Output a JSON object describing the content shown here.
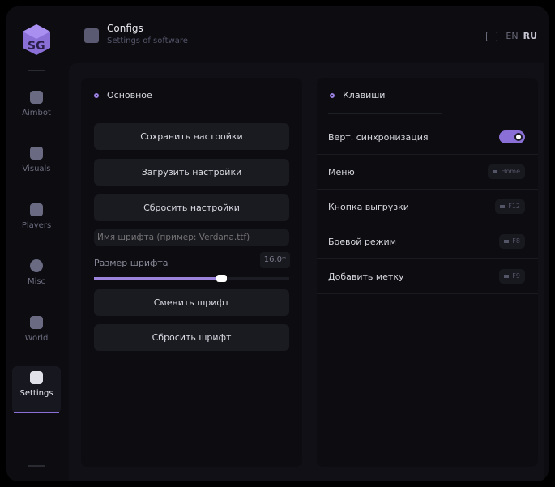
{
  "header": {
    "title": "Configs",
    "subtitle": "Settings of software",
    "lang_en": "EN",
    "lang_ru": "RU"
  },
  "sidebar": {
    "items": [
      {
        "label": "Aimbot",
        "icon": "skull-icon"
      },
      {
        "label": "Visuals",
        "icon": "vr-glasses-icon"
      },
      {
        "label": "Players",
        "icon": "users-icon"
      },
      {
        "label": "Misc",
        "icon": "chat-icon"
      },
      {
        "label": "World",
        "icon": "briefcase-icon"
      },
      {
        "label": "Settings",
        "icon": "list-icon",
        "active": true
      }
    ]
  },
  "left": {
    "title": "Основное",
    "save": "Сохранить настройки",
    "load": "Загрузить настройки",
    "reset": "Сбросить настройки",
    "font_placeholder": "Имя шрифта (пример: Verdana.ttf)",
    "font_size_label": "Размер шрифта",
    "font_size_value": "16.0*",
    "font_size_fraction": 0.65,
    "change_font": "Сменить шрифт",
    "reset_font": "Сбросить шрифт"
  },
  "right": {
    "title": "Клавиши",
    "vsync": "Верт. синхронизация",
    "vsync_on": true,
    "rows": [
      {
        "label": "Меню",
        "key": "Home"
      },
      {
        "label": "Кнопка выгрузки",
        "key": "F12"
      },
      {
        "label": "Боевой режим",
        "key": "F8"
      },
      {
        "label": "Добавить метку",
        "key": "F9"
      }
    ]
  },
  "colors": {
    "accent": "#8a6fd6"
  }
}
